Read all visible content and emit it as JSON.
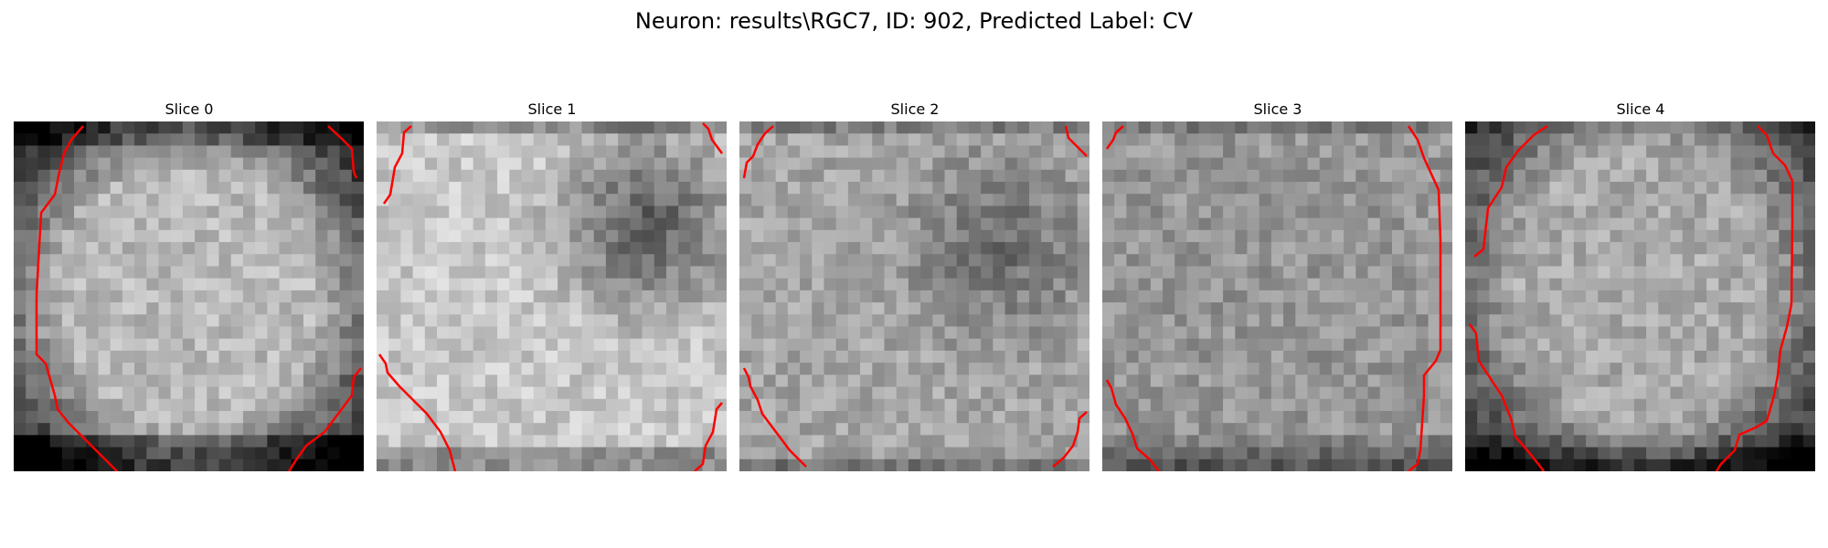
{
  "figure": {
    "title": "Neuron: results\\RGC7, ID: 902, Predicted Label: CV"
  },
  "colormap": "gray",
  "contour_color": "#ff0000",
  "panels": [
    {
      "title": "Slice 0"
    },
    {
      "title": "Slice 1"
    },
    {
      "title": "Slice 2"
    },
    {
      "title": "Slice 3"
    },
    {
      "title": "Slice 4"
    }
  ]
}
